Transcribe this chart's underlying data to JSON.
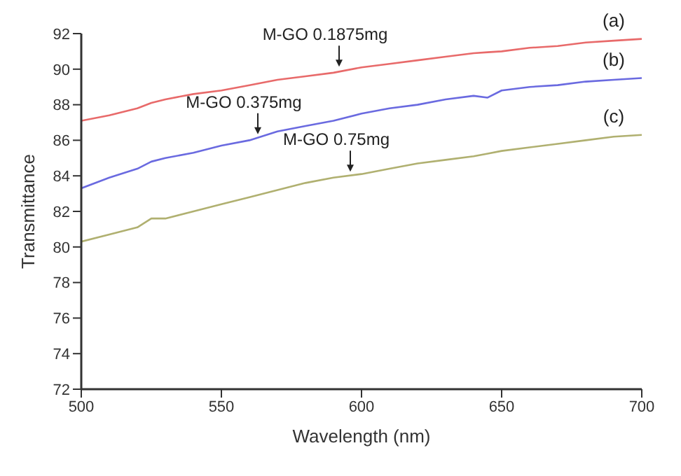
{
  "chart_data": {
    "type": "line",
    "xlabel": "Wavelength (nm)",
    "ylabel": "Transmittance",
    "xlim": [
      500,
      700
    ],
    "xticks": [
      500,
      550,
      600,
      650,
      700
    ],
    "ylim": [
      72,
      92
    ],
    "yticks": [
      72,
      74,
      76,
      78,
      80,
      82,
      84,
      86,
      88,
      90,
      92
    ],
    "grid": false,
    "legend": false,
    "marker": "none",
    "line_style": "solid",
    "x": [
      500,
      510,
      520,
      525,
      530,
      540,
      550,
      560,
      570,
      580,
      590,
      600,
      610,
      620,
      630,
      640,
      645,
      650,
      660,
      670,
      680,
      690,
      700
    ],
    "series": [
      {
        "name": "(a)",
        "color": "#e86a6a",
        "values": [
          87.1,
          87.4,
          87.8,
          88.1,
          88.3,
          88.6,
          88.8,
          89.1,
          89.4,
          89.6,
          89.8,
          90.1,
          90.3,
          90.5,
          90.7,
          90.9,
          90.95,
          91.0,
          91.2,
          91.3,
          91.5,
          91.6,
          91.7
        ]
      },
      {
        "name": "(b)",
        "color": "#6a6ae0",
        "values": [
          83.3,
          83.9,
          84.4,
          84.8,
          85.0,
          85.3,
          85.7,
          86.0,
          86.5,
          86.8,
          87.1,
          87.5,
          87.8,
          88.0,
          88.3,
          88.5,
          88.4,
          88.8,
          89.0,
          89.1,
          89.3,
          89.4,
          89.5
        ]
      },
      {
        "name": "(c)",
        "color": "#b0b070",
        "values": [
          80.3,
          80.7,
          81.1,
          81.6,
          81.6,
          82.0,
          82.4,
          82.8,
          83.2,
          83.6,
          83.9,
          84.1,
          84.4,
          84.7,
          84.9,
          85.1,
          85.25,
          85.4,
          85.6,
          85.8,
          86.0,
          86.2,
          86.3
        ]
      }
    ],
    "annotations": [
      {
        "text": "M-GO 0.1875mg",
        "x": 592,
        "y": 89.9
      },
      {
        "text": "M-GO 0.375mg",
        "x": 563,
        "y": 86.1
      },
      {
        "text": "M-GO 0.75mg",
        "x": 596,
        "y": 84.0
      }
    ]
  }
}
